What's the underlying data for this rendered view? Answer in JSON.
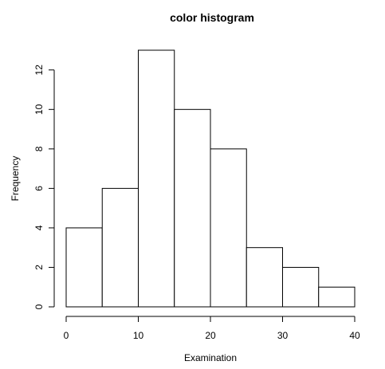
{
  "chart_data": {
    "type": "bar",
    "title": "color histogram",
    "xlabel": "Examination",
    "ylabel": "Frequency",
    "bins": [
      {
        "start": 0,
        "end": 5,
        "count": 4
      },
      {
        "start": 5,
        "end": 10,
        "count": 6
      },
      {
        "start": 10,
        "end": 15,
        "count": 13
      },
      {
        "start": 15,
        "end": 20,
        "count": 10
      },
      {
        "start": 20,
        "end": 25,
        "count": 8
      },
      {
        "start": 25,
        "end": 30,
        "count": 3
      },
      {
        "start": 30,
        "end": 35,
        "count": 2
      },
      {
        "start": 35,
        "end": 40,
        "count": 1
      }
    ],
    "xlim": [
      0,
      40
    ],
    "ylim": [
      0,
      13
    ],
    "x_ticks": [
      0,
      10,
      20,
      30,
      40
    ],
    "y_ticks": [
      0,
      2,
      4,
      6,
      8,
      10,
      12
    ],
    "grid": false,
    "bar_fill": "#ffffff",
    "bar_stroke": "#000000"
  }
}
